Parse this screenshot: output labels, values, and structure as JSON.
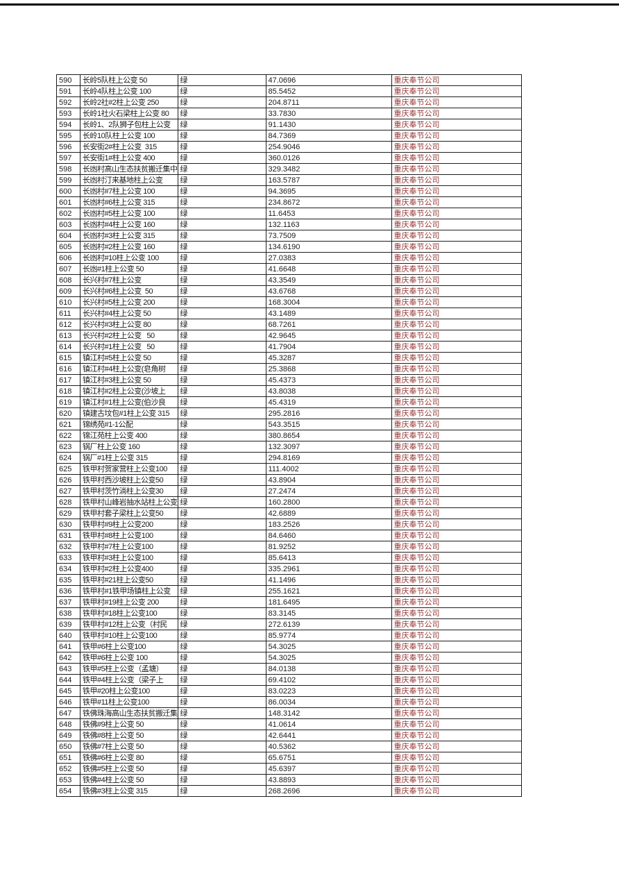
{
  "table": {
    "description": "spreadsheet-grid-of-distribution-transformers",
    "columns": [
      "row_number",
      "transformer_name",
      "status",
      "load_value",
      "company"
    ],
    "status_value": "绿",
    "company_value": "重庆奉节公司",
    "colors": {
      "company_text": "#953735",
      "body_text": "#1a1a1a",
      "grid_line": "#1c1c1c",
      "top_rule": "#000000"
    },
    "rows": [
      [
        "590",
        "长岭5队柱上公变 50",
        "绿",
        "47.0696",
        "重庆奉节公司"
      ],
      [
        "591",
        "长岭4队柱上公变 100",
        "绿",
        "85.5452",
        "重庆奉节公司"
      ],
      [
        "592",
        "长岭2社#2柱上公变 250",
        "绿",
        "204.8711",
        "重庆奉节公司"
      ],
      [
        "593",
        "长岭1社火石梁柱上公变 80",
        "绿",
        "33.7830",
        "重庆奉节公司"
      ],
      [
        "594",
        "长岭1、2队狮子包柱上公变",
        "绿",
        "91.1430",
        "重庆奉节公司"
      ],
      [
        "595",
        "长岭10队柱上公变 100",
        "绿",
        "84.7369",
        "重庆奉节公司"
      ],
      [
        "596",
        "长安街2#柱上公变  315",
        "绿",
        "254.9046",
        "重庆奉节公司"
      ],
      [
        "597",
        "长安街1#柱上公变 400",
        "绿",
        "360.0126",
        "重庆奉节公司"
      ],
      [
        "598",
        "长凼村高山生态扶贫搬迁集中",
        "绿",
        "329.3482",
        "重庆奉节公司"
      ],
      [
        "599",
        "长凼村汀来基地柱上公变",
        "绿",
        "163.5787",
        "重庆奉节公司"
      ],
      [
        "600",
        "长凼村#7柱上公变 100",
        "绿",
        "94.3695",
        "重庆奉节公司"
      ],
      [
        "601",
        "长凼村#6柱上公变 315",
        "绿",
        "234.8672",
        "重庆奉节公司"
      ],
      [
        "602",
        "长凼村#5柱上公变 100",
        "绿",
        "11.6453",
        "重庆奉节公司"
      ],
      [
        "603",
        "长凼村#4柱上公变 160",
        "绿",
        "132.1163",
        "重庆奉节公司"
      ],
      [
        "604",
        "长凼村#3柱上公变 315",
        "绿",
        "73.7509",
        "重庆奉节公司"
      ],
      [
        "605",
        "长凼村#2柱上公变 160",
        "绿",
        "134.6190",
        "重庆奉节公司"
      ],
      [
        "606",
        "长凼村#10柱上公变 100",
        "绿",
        "27.0383",
        "重庆奉节公司"
      ],
      [
        "607",
        "长凼#1柱上公变 50",
        "绿",
        "41.6648",
        "重庆奉节公司"
      ],
      [
        "608",
        "长兴村#7柱上公变",
        "绿",
        "43.3549",
        "重庆奉节公司"
      ],
      [
        "609",
        "长兴村#6柱上公变  50",
        "绿",
        "43.6768",
        "重庆奉节公司"
      ],
      [
        "610",
        "长兴村#5柱上公变 200",
        "绿",
        "168.3004",
        "重庆奉节公司"
      ],
      [
        "611",
        "长兴村#4柱上公变 50",
        "绿",
        "43.1489",
        "重庆奉节公司"
      ],
      [
        "612",
        "长兴村#3柱上公变 80",
        "绿",
        "68.7261",
        "重庆奉节公司"
      ],
      [
        "613",
        "长兴村#2柱上公变   50",
        "绿",
        "42.9645",
        "重庆奉节公司"
      ],
      [
        "614",
        "长兴村#1柱上公变   50",
        "绿",
        "41.7904",
        "重庆奉节公司"
      ],
      [
        "615",
        "镇江村#5柱上公变 50",
        "绿",
        "45.3287",
        "重庆奉节公司"
      ],
      [
        "616",
        "镇江村#4柱上公变(皂角树",
        "绿",
        "25.3868",
        "重庆奉节公司"
      ],
      [
        "617",
        "镇江村#3柱上公变 50",
        "绿",
        "45.4373",
        "重庆奉节公司"
      ],
      [
        "618",
        "镇江村#2柱上公变(沙坡上",
        "绿",
        "43.8038",
        "重庆奉节公司"
      ],
      [
        "619",
        "镇江村#1柱上公变(伯沙良",
        "绿",
        "45.4319",
        "重庆奉节公司"
      ],
      [
        "620",
        "镇建古坟包#1柱上公变 315",
        "绿",
        "295.2816",
        "重庆奉节公司"
      ],
      [
        "621",
        "锦绣苑#1-1公配",
        "绿",
        "543.3515",
        "重庆奉节公司"
      ],
      [
        "622",
        "锦江苑柱上公变 400",
        "绿",
        "380.8654",
        "重庆奉节公司"
      ],
      [
        "623",
        "锅厂柱上公变 160",
        "绿",
        "132.3097",
        "重庆奉节公司"
      ],
      [
        "624",
        "锅厂#1柱上公变 315",
        "绿",
        "294.8169",
        "重庆奉节公司"
      ],
      [
        "625",
        "铁甲村贺家营柱上公变100",
        "绿",
        "111.4002",
        "重庆奉节公司"
      ],
      [
        "626",
        "铁甲村西沙坡柱上公变50",
        "绿",
        "43.8904",
        "重庆奉节公司"
      ],
      [
        "627",
        "铁甲村茨竹淌柱上公变30",
        "绿",
        "27.2474",
        "重庆奉节公司"
      ],
      [
        "628",
        "铁甲村山峰岩抽水站柱上公变",
        "绿",
        "160.2800",
        "重庆奉节公司"
      ],
      [
        "629",
        "铁甲村套子梁柱上公变50",
        "绿",
        "42.6889",
        "重庆奉节公司"
      ],
      [
        "630",
        "铁甲村#9柱上公变200",
        "绿",
        "183.2526",
        "重庆奉节公司"
      ],
      [
        "631",
        "铁甲村#8柱上公变100",
        "绿",
        "84.6460",
        "重庆奉节公司"
      ],
      [
        "632",
        "铁甲村#7柱上公变100",
        "绿",
        "81.9252",
        "重庆奉节公司"
      ],
      [
        "633",
        "铁甲村#3柱上公变100",
        "绿",
        "85.6413",
        "重庆奉节公司"
      ],
      [
        "634",
        "铁甲村#2柱上公变400",
        "绿",
        "335.2961",
        "重庆奉节公司"
      ],
      [
        "635",
        "铁甲村#21柱上公变50",
        "绿",
        "41.1496",
        "重庆奉节公司"
      ],
      [
        "636",
        "铁甲村#1铁甲场镇柱上公变",
        "绿",
        "255.1621",
        "重庆奉节公司"
      ],
      [
        "637",
        "铁甲村#19柱上公变 200",
        "绿",
        "181.6495",
        "重庆奉节公司"
      ],
      [
        "638",
        "铁甲村#18柱上公变100",
        "绿",
        "83.3145",
        "重庆奉节公司"
      ],
      [
        "639",
        "铁甲村#12柱上公变（村民",
        "绿",
        "272.6139",
        "重庆奉节公司"
      ],
      [
        "640",
        "铁甲村#10柱上公变100",
        "绿",
        "85.9774",
        "重庆奉节公司"
      ],
      [
        "641",
        "铁甲#6柱上公变100",
        "绿",
        "54.3025",
        "重庆奉节公司"
      ],
      [
        "642",
        "铁甲#6柱上公变 100",
        "绿",
        "54.3025",
        "重庆奉节公司"
      ],
      [
        "643",
        "铁甲#5柱上公变（孟塘）",
        "绿",
        "84.0138",
        "重庆奉节公司"
      ],
      [
        "644",
        "铁甲#4柱上公变（梁子上",
        "绿",
        "69.4102",
        "重庆奉节公司"
      ],
      [
        "645",
        "铁甲#20柱上公变100",
        "绿",
        "83.0223",
        "重庆奉节公司"
      ],
      [
        "646",
        "铁甲#11柱上公变100",
        "绿",
        "86.0034",
        "重庆奉节公司"
      ],
      [
        "647",
        "铁佛珠海高山生态扶贫搬迁集",
        "绿",
        "148.3142",
        "重庆奉节公司"
      ],
      [
        "648",
        "铁佛#9柱上公变 50",
        "绿",
        "41.0614",
        "重庆奉节公司"
      ],
      [
        "649",
        "铁佛#8柱上公变 50",
        "绿",
        "42.6441",
        "重庆奉节公司"
      ],
      [
        "650",
        "铁佛#7柱上公变 50",
        "绿",
        "40.5362",
        "重庆奉节公司"
      ],
      [
        "651",
        "铁佛#6柱上公变 80",
        "绿",
        "65.6751",
        "重庆奉节公司"
      ],
      [
        "652",
        "铁佛#5柱上公变 50",
        "绿",
        "45.6397",
        "重庆奉节公司"
      ],
      [
        "653",
        "铁佛#4柱上公变 50",
        "绿",
        "43.8893",
        "重庆奉节公司"
      ],
      [
        "654",
        "铁佛#3柱上公变 315",
        "绿",
        "268.2696",
        "重庆奉节公司"
      ]
    ]
  }
}
